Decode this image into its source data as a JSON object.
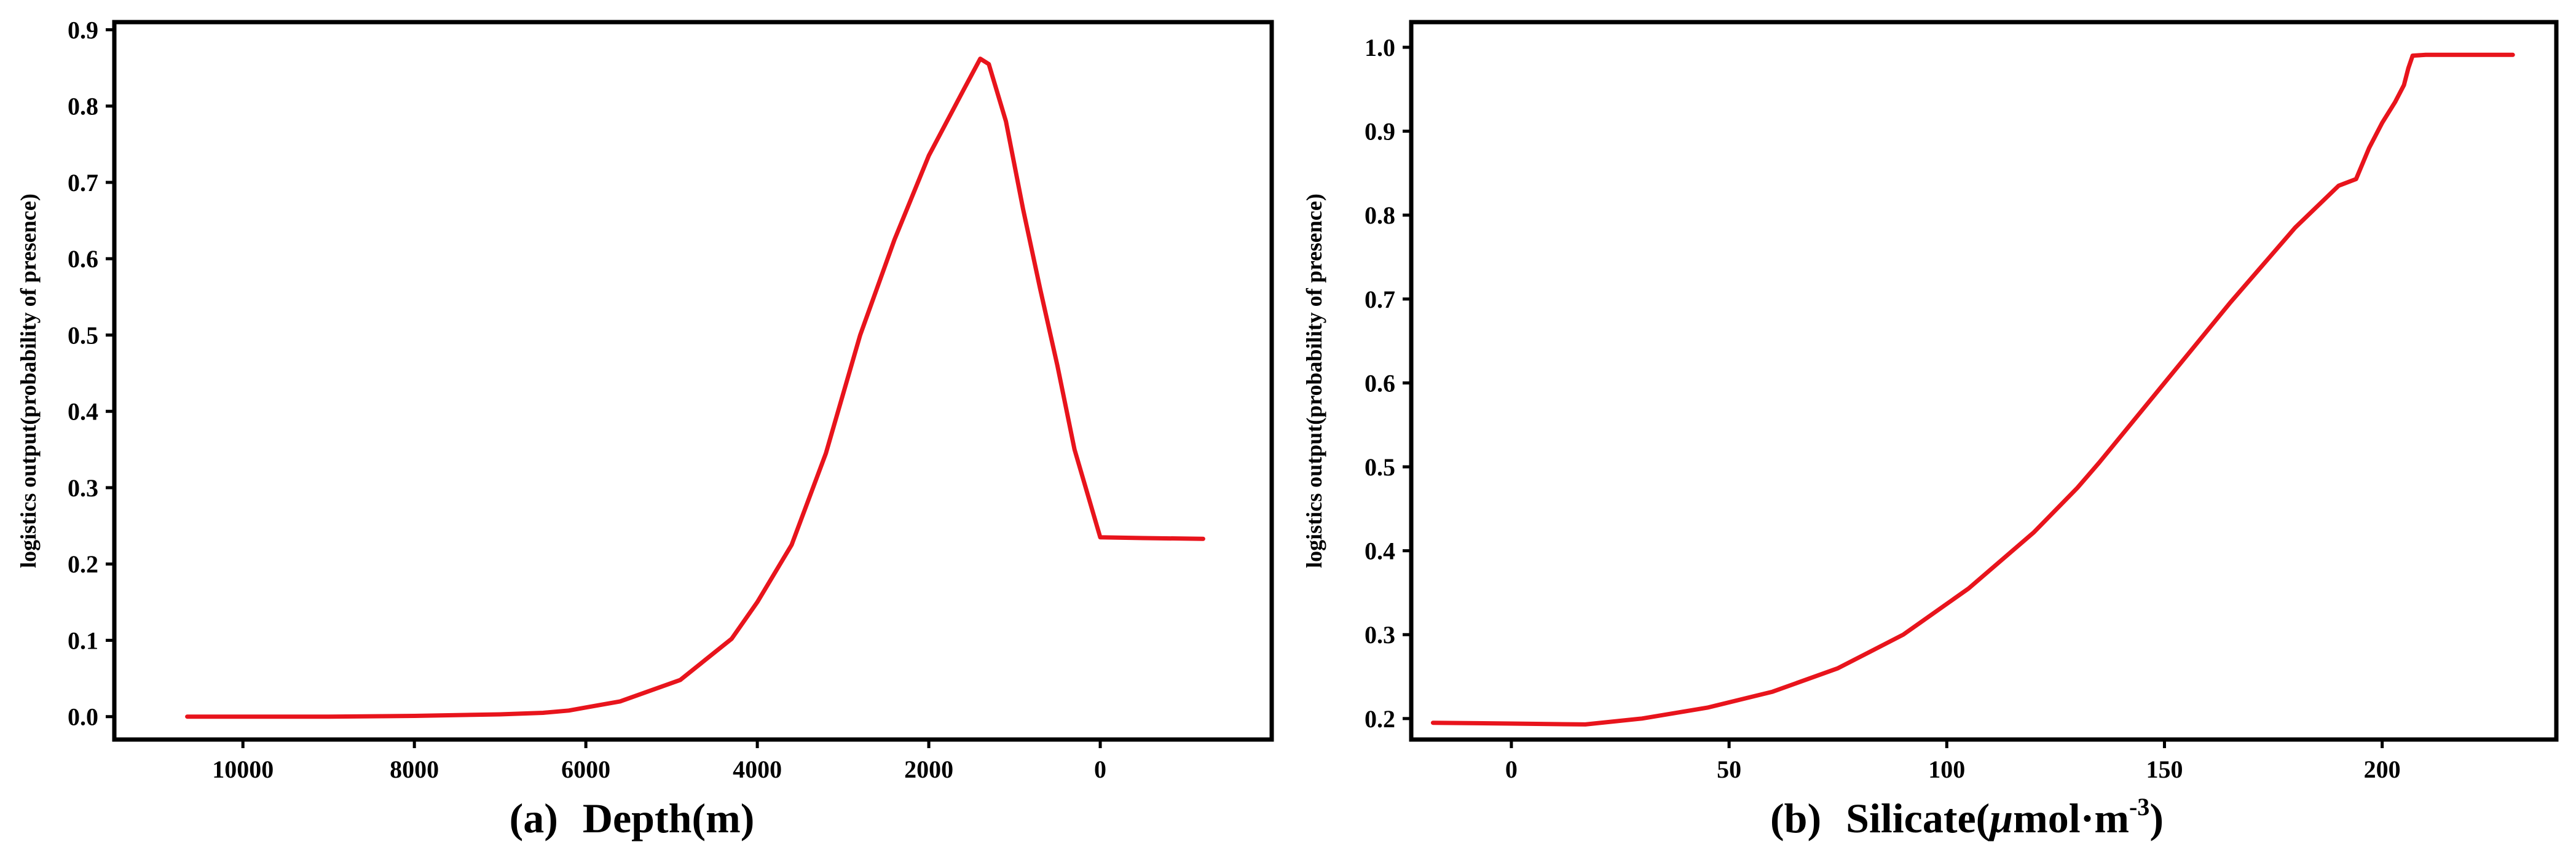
{
  "chart_data": [
    {
      "type": "line",
      "panel_label": "(a)",
      "xlabel": "Depth(m)",
      "ylabel": "logistics output(probability of presence)",
      "x_reversed": true,
      "xlim": [
        11500,
        -2000
      ],
      "ylim": [
        -0.03,
        0.91
      ],
      "xticks": [
        10000,
        8000,
        6000,
        4000,
        2000,
        0
      ],
      "xtick_labels": [
        "10000",
        "8000",
        "6000",
        "4000",
        "2000",
        "0"
      ],
      "yticks": [
        0.0,
        0.1,
        0.2,
        0.3,
        0.4,
        0.5,
        0.6,
        0.7,
        0.8,
        0.9
      ],
      "ytick_labels": [
        "0.0",
        "0.1",
        "0.2",
        "0.3",
        "0.4",
        "0.5",
        "0.6",
        "0.7",
        "0.8",
        "0.9"
      ],
      "grid": false,
      "color": "#e8141c",
      "series": [
        {
          "x": [
            10650,
            9000,
            8000,
            7000,
            6500,
            6200,
            6000,
            5600,
            4900,
            4300,
            4000,
            3600,
            3200,
            2800,
            2400,
            2000,
            1600,
            1400,
            1300,
            1100,
            900,
            700,
            500,
            300,
            0,
            -500,
            -1200
          ],
          "y": [
            0.0,
            0.0,
            0.001,
            0.003,
            0.005,
            0.008,
            0.012,
            0.02,
            0.048,
            0.102,
            0.15,
            0.225,
            0.345,
            0.5,
            0.625,
            0.735,
            0.82,
            0.862,
            0.855,
            0.78,
            0.665,
            0.56,
            0.46,
            0.35,
            0.235,
            0.234,
            0.233
          ]
        }
      ]
    },
    {
      "type": "line",
      "panel_label": "(b)",
      "xlabel": "Silicate(μmol·m-3)",
      "xlabel_main": "Silicate(",
      "xlabel_unit": "μ",
      "xlabel_unit2": "mol·m",
      "xlabel_sup": "-3",
      "xlabel_close": ")",
      "ylabel": "logistics output(probability of presence)",
      "xlim": [
        -23,
        240
      ],
      "ylim": [
        0.175,
        1.03
      ],
      "xticks": [
        0,
        50,
        100,
        150,
        200
      ],
      "xtick_labels": [
        "0",
        "50",
        "100",
        "150",
        "200"
      ],
      "yticks": [
        0.2,
        0.3,
        0.4,
        0.5,
        0.6,
        0.7,
        0.8,
        0.9,
        1.0
      ],
      "ytick_labels": [
        "0.2",
        "0.3",
        "0.4",
        "0.5",
        "0.6",
        "0.7",
        "0.8",
        "0.9",
        "1.0"
      ],
      "grid": false,
      "color": "#e8141c",
      "series": [
        {
          "x": [
            -18,
            0,
            17,
            30,
            45,
            60,
            75,
            90,
            105,
            120,
            130,
            135,
            150,
            165,
            180,
            190,
            194,
            197,
            200,
            203,
            205,
            206,
            207,
            210,
            230
          ],
          "y": [
            0.195,
            0.194,
            0.193,
            0.2,
            0.213,
            0.232,
            0.26,
            0.3,
            0.355,
            0.422,
            0.475,
            0.505,
            0.6,
            0.695,
            0.785,
            0.835,
            0.843,
            0.88,
            0.91,
            0.935,
            0.955,
            0.975,
            0.99,
            0.991,
            0.991
          ]
        }
      ]
    }
  ]
}
